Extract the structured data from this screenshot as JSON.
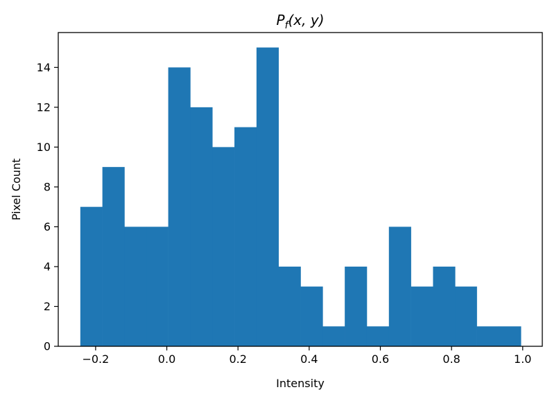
{
  "chart_data": {
    "type": "bar",
    "title": "P_f(x, y)",
    "title_parts": {
      "main": "P",
      "sub": "f",
      "rest": "(x, y)"
    },
    "xlabel": "Intensity",
    "ylabel": "Pixel Count",
    "xlim": [
      -0.305,
      1.055
    ],
    "ylim": [
      0,
      15.75
    ],
    "x_ticks": [
      -0.2,
      0.0,
      0.2,
      0.4,
      0.6,
      0.8,
      1.0
    ],
    "x_tick_labels": [
      "−0.2",
      "0.0",
      "0.2",
      "0.4",
      "0.6",
      "0.8",
      "1.0"
    ],
    "y_ticks": [
      0,
      2,
      4,
      6,
      8,
      10,
      12,
      14
    ],
    "y_tick_labels": [
      "0",
      "2",
      "4",
      "6",
      "8",
      "10",
      "12",
      "14"
    ],
    "bin_edges": [
      -0.243,
      -0.181,
      -0.119,
      -0.057,
      0.004,
      0.066,
      0.128,
      0.19,
      0.252,
      0.314,
      0.376,
      0.438,
      0.5,
      0.562,
      0.624,
      0.686,
      0.748,
      0.81,
      0.871,
      0.933,
      0.995
    ],
    "values": [
      7,
      9,
      6,
      6,
      14,
      12,
      10,
      11,
      15,
      4,
      3,
      1,
      4,
      1,
      6,
      3,
      4,
      3,
      1,
      1
    ],
    "grid": false,
    "bar_color": "#1f77b4"
  }
}
